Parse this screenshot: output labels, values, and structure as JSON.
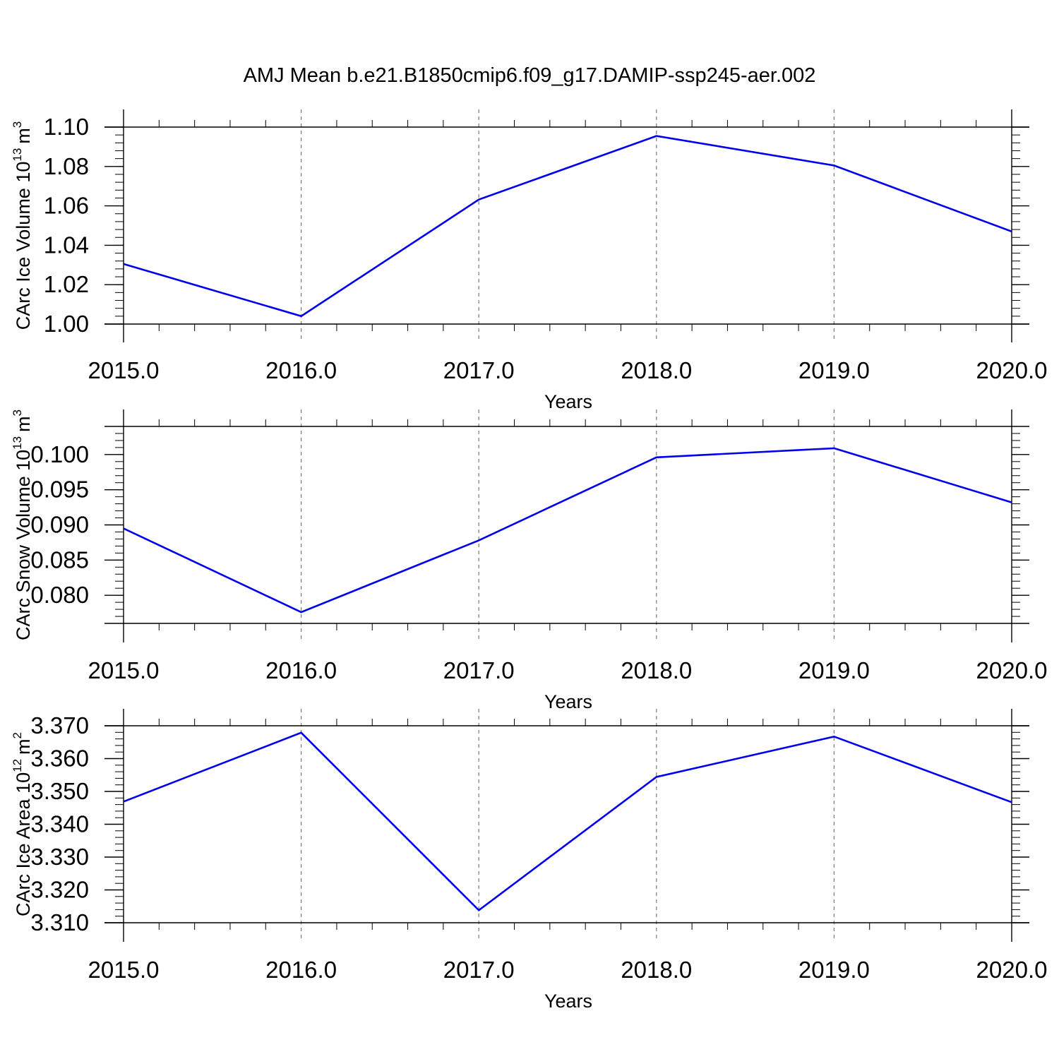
{
  "figure_title": "AMJ Mean b.e21.B1850cmip6.f09_g17.DAMIP-ssp245-aer.002",
  "chart_data": [
    {
      "type": "line",
      "x": [
        2015,
        2016,
        2017,
        2018,
        2019,
        2020
      ],
      "values": [
        1.0305,
        1.004,
        1.0632,
        1.0955,
        1.0805,
        1.047
      ],
      "xlim": [
        2015,
        2020
      ],
      "ylim": [
        1.0,
        1.1
      ],
      "y_ticks": [
        1.0,
        1.02,
        1.04,
        1.06,
        1.08,
        1.1
      ],
      "y_tick_labels": [
        "1.00",
        "1.02",
        "1.04",
        "1.06",
        "1.08",
        "1.10"
      ],
      "x_ticks": [
        2015,
        2016,
        2017,
        2018,
        2019,
        2020
      ],
      "x_tick_labels": [
        "2015.0",
        "2016.0",
        "2017.0",
        "2018.0",
        "2019.0",
        "2020.0"
      ],
      "xlabel": "Years",
      "ylabel": "CArc Ice Volume 10",
      "ylabel_exp": "13",
      "ylabel_unit": "m",
      "ylabel_unit_exp": "3",
      "grid": "vertical-dashed",
      "line_color": "#0000ee"
    },
    {
      "type": "line",
      "x": [
        2015,
        2016,
        2017,
        2018,
        2019,
        2020
      ],
      "values": [
        0.0895,
        0.0776,
        0.0878,
        0.0996,
        0.1009,
        0.0932
      ],
      "xlim": [
        2015,
        2020
      ],
      "ylim": [
        0.076,
        0.104
      ],
      "y_ticks": [
        0.08,
        0.085,
        0.09,
        0.095,
        0.1
      ],
      "y_tick_labels": [
        "0.080",
        "0.085",
        "0.090",
        "0.095",
        "0.100"
      ],
      "x_ticks": [
        2015,
        2016,
        2017,
        2018,
        2019,
        2020
      ],
      "x_tick_labels": [
        "2015.0",
        "2016.0",
        "2017.0",
        "2018.0",
        "2019.0",
        "2020.0"
      ],
      "xlabel": "Years",
      "ylabel": "CArc Snow Volume 10",
      "ylabel_exp": "13",
      "ylabel_unit": "m",
      "ylabel_unit_exp": "3",
      "grid": "vertical-dashed",
      "line_color": "#0000ee"
    },
    {
      "type": "line",
      "x": [
        2015,
        2016,
        2017,
        2018,
        2019,
        2020
      ],
      "values": [
        3.3469,
        3.3679,
        3.3138,
        3.3544,
        3.3667,
        3.3467
      ],
      "xlim": [
        2015,
        2020
      ],
      "ylim": [
        3.31,
        3.37
      ],
      "y_ticks": [
        3.31,
        3.32,
        3.33,
        3.34,
        3.35,
        3.36,
        3.37
      ],
      "y_tick_labels": [
        "3.310",
        "3.320",
        "3.330",
        "3.340",
        "3.350",
        "3.360",
        "3.370"
      ],
      "x_ticks": [
        2015,
        2016,
        2017,
        2018,
        2019,
        2020
      ],
      "x_tick_labels": [
        "2015.0",
        "2016.0",
        "2017.0",
        "2018.0",
        "2019.0",
        "2020.0"
      ],
      "xlabel": "Years",
      "ylabel": "CArc Ice Area 10",
      "ylabel_exp": "12",
      "ylabel_unit": "m",
      "ylabel_unit_exp": "2",
      "grid": "vertical-dashed",
      "line_color": "#0000ee"
    }
  ]
}
